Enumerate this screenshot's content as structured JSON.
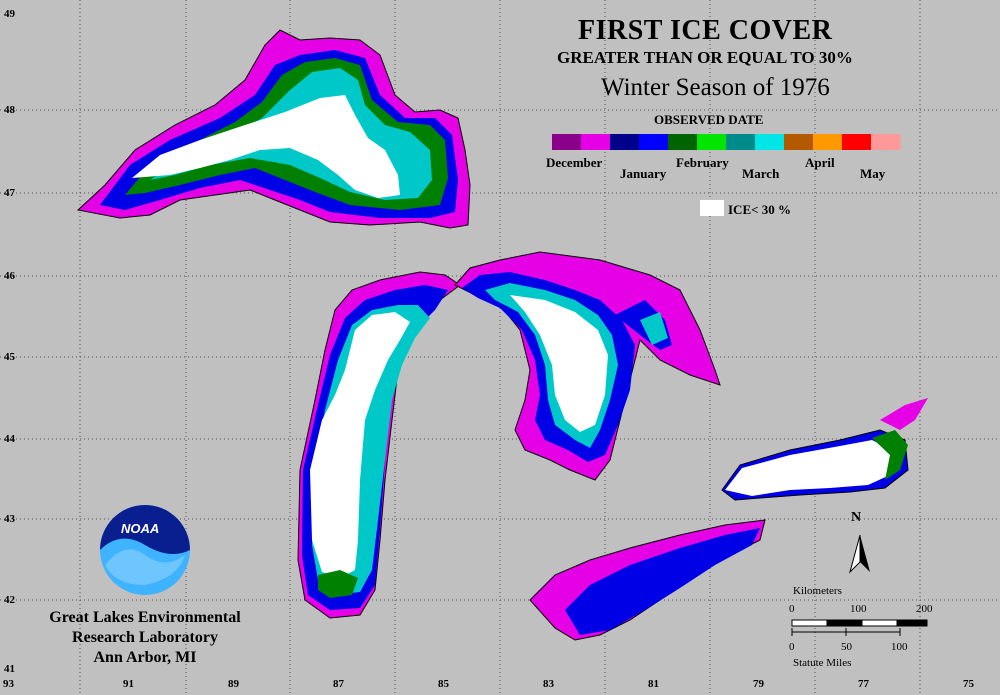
{
  "title": {
    "line1": "FIRST ICE COVER",
    "line2": "GREATER THAN OR EQUAL TO 30%",
    "line3": "Winter Season of 1976"
  },
  "legend": {
    "heading": "OBSERVED DATE",
    "months": [
      "December",
      "January",
      "February",
      "March",
      "April",
      "May"
    ],
    "colors": [
      "#8b008b",
      "#e600e6",
      "#00008b",
      "#0000ff",
      "#006400",
      "#00e600",
      "#008b8b",
      "#00e6e6",
      "#b35900",
      "#ff9900",
      "#ff0000",
      "#ff9999"
    ],
    "ice_label": "ICE< 30 %",
    "ice_color": "#ffffff"
  },
  "axes": {
    "lon_ticks": [
      "93",
      "91",
      "89",
      "87",
      "85",
      "83",
      "81",
      "79",
      "77",
      "75"
    ],
    "lat_ticks": [
      "49",
      "48",
      "47",
      "46",
      "45",
      "44",
      "43",
      "42",
      "41"
    ]
  },
  "organization": {
    "line1": "Great Lakes Environmental",
    "line2": "Research Laboratory",
    "line3": "Ann Arbor, MI"
  },
  "logo_text": "NOAA",
  "north_arrow": "N",
  "scale_bar": {
    "km_label": "Kilometers",
    "km_ticks": [
      "0",
      "100",
      "200"
    ],
    "mi_label": "Statute Miles",
    "mi_ticks": [
      "0",
      "50",
      "100"
    ]
  },
  "map_colors": {
    "background": "#c0c0c0",
    "land_outline": "#000000",
    "dec": "#e600e6",
    "jan": "#0000e6",
    "feb": "#008000",
    "feb_light": "#00d000",
    "mar": "#00c8c8",
    "mar_dark": "#008b8b",
    "ice_lt_30": "#ffffff"
  }
}
